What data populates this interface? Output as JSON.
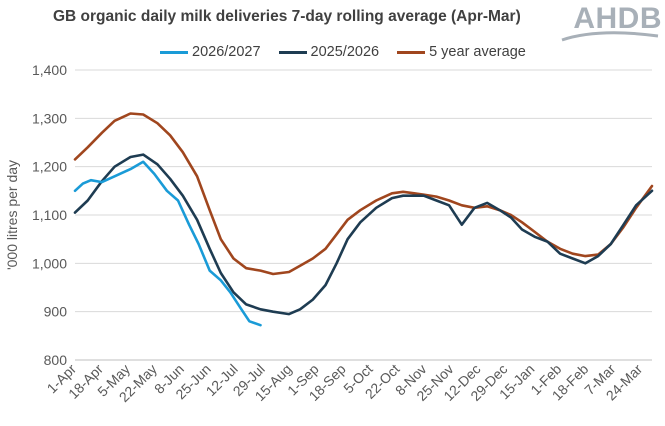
{
  "chart_data": {
    "type": "line",
    "title": "GB organic daily milk deliveries 7-day rolling average (Apr-Mar)",
    "xlabel": "",
    "ylabel": "'000 litres per day",
    "ylim": [
      800,
      1400
    ],
    "yticks": [
      "800",
      "900",
      "1,000",
      "1,100",
      "1,200",
      "1,300",
      "1,400"
    ],
    "xticks": [
      "1-Apr",
      "18-Apr",
      "5-May",
      "22-May",
      "8-Jun",
      "25-Jun",
      "12-Jul",
      "29-Jul",
      "15-Aug",
      "1-Sep",
      "18-Sep",
      "5-Oct",
      "22-Oct",
      "8-Nov",
      "25-Nov",
      "12-Dec",
      "29-Dec",
      "15-Jan",
      "1-Feb",
      "18-Feb",
      "7-Mar",
      "24-Mar"
    ],
    "grid": "horizontal",
    "legend": "top",
    "series": [
      {
        "name": "2026/2027",
        "color": "#1a9bd7",
        "x": [
          0,
          5,
          10,
          17,
          25,
          35,
          43,
          50,
          58,
          65,
          72,
          78,
          85,
          92,
          98,
          105,
          110,
          117
        ],
        "y": [
          1150,
          1165,
          1172,
          1168,
          1180,
          1195,
          1210,
          1185,
          1150,
          1130,
          1080,
          1040,
          985,
          965,
          940,
          905,
          880,
          872
        ]
      },
      {
        "name": "2025/2026",
        "color": "#1e3c52",
        "x": [
          0,
          8,
          17,
          25,
          35,
          43,
          52,
          60,
          68,
          77,
          85,
          92,
          100,
          108,
          117,
          125,
          135,
          142,
          150,
          158,
          165,
          172,
          180,
          190,
          200,
          207,
          214,
          220,
          228,
          236,
          244,
          252,
          260,
          268,
          275,
          282,
          290,
          298,
          306,
          314,
          322,
          330,
          338,
          346,
          354,
          364
        ],
        "y": [
          1105,
          1130,
          1170,
          1200,
          1220,
          1225,
          1205,
          1175,
          1140,
          1090,
          1030,
          980,
          940,
          915,
          905,
          900,
          895,
          905,
          925,
          955,
          1000,
          1050,
          1085,
          1115,
          1135,
          1140,
          1140,
          1140,
          1130,
          1120,
          1080,
          1115,
          1125,
          1110,
          1095,
          1070,
          1055,
          1045,
          1020,
          1010,
          1000,
          1015,
          1040,
          1080,
          1120,
          1150
        ]
      },
      {
        "name": "5 year average",
        "color": "#a0461e",
        "x": [
          0,
          8,
          17,
          25,
          35,
          43,
          52,
          60,
          68,
          77,
          85,
          92,
          100,
          108,
          117,
          125,
          135,
          142,
          150,
          158,
          165,
          172,
          180,
          190,
          200,
          207,
          214,
          220,
          228,
          236,
          244,
          252,
          260,
          268,
          275,
          282,
          290,
          298,
          306,
          314,
          322,
          330,
          338,
          346,
          354,
          364
        ],
        "y": [
          1215,
          1240,
          1270,
          1295,
          1310,
          1308,
          1290,
          1265,
          1230,
          1180,
          1110,
          1050,
          1010,
          990,
          985,
          978,
          982,
          995,
          1010,
          1030,
          1060,
          1090,
          1110,
          1130,
          1145,
          1148,
          1145,
          1142,
          1138,
          1130,
          1120,
          1115,
          1118,
          1110,
          1100,
          1085,
          1065,
          1045,
          1030,
          1020,
          1015,
          1018,
          1040,
          1075,
          1115,
          1160
        ]
      }
    ]
  },
  "logo": {
    "text": "AHDB"
  }
}
